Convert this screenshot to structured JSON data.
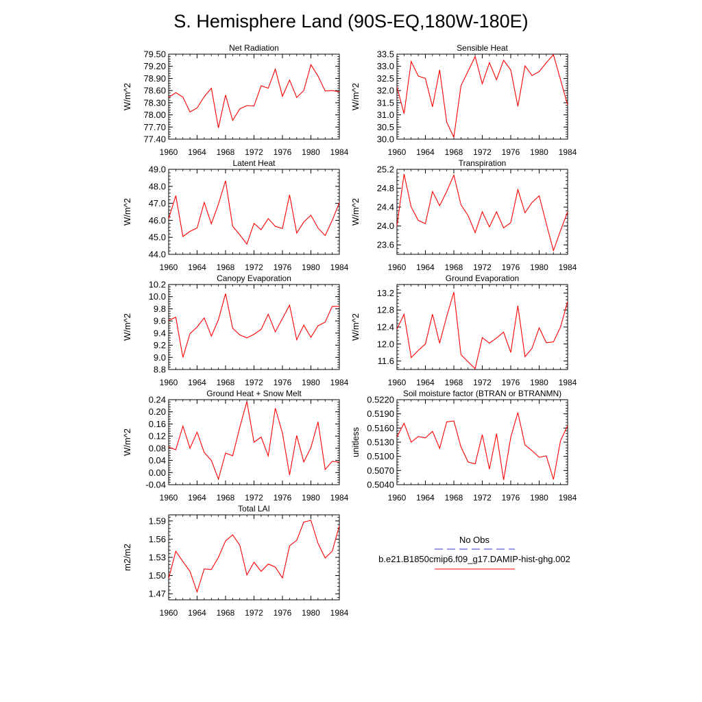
{
  "figure": {
    "title": "S. Hemisphere Land (90S-EQ,180W-180E)"
  },
  "legend": {
    "entries": [
      {
        "label": "No Obs",
        "color": "#3333cc",
        "style": "dashed"
      },
      {
        "label": "b.e21.B1850cmip6.f09_g17.DAMIP-hist-ghg.002",
        "color": "#ff0000",
        "style": "solid"
      }
    ]
  },
  "chart_data": [
    {
      "type": "line",
      "title": "Net Radiation",
      "ylabel": "W/m^2",
      "xlim": [
        1960,
        1984
      ],
      "ylim": [
        77.4,
        79.5
      ],
      "yticks": [
        "77.40",
        "77.70",
        "78.00",
        "78.30",
        "78.60",
        "78.90",
        "79.20",
        "79.50"
      ],
      "xticks": [
        "1960",
        "1964",
        "1968",
        "1972",
        "1976",
        "1980",
        "1984"
      ],
      "x": [
        1960,
        1961,
        1962,
        1963,
        1964,
        1965,
        1966,
        1967,
        1968,
        1969,
        1970,
        1971,
        1972,
        1973,
        1974,
        1975,
        1976,
        1977,
        1978,
        1979,
        1980,
        1981,
        1982,
        1983,
        1984
      ],
      "series": [
        {
          "color": "#ff0000",
          "values": [
            78.43,
            78.55,
            78.44,
            78.07,
            78.17,
            78.45,
            78.66,
            77.68,
            78.49,
            77.86,
            78.15,
            78.23,
            78.22,
            78.72,
            78.66,
            79.13,
            78.46,
            78.86,
            78.43,
            78.6,
            79.24,
            78.96,
            78.59,
            78.6,
            78.57
          ]
        }
      ]
    },
    {
      "type": "line",
      "title": "Sensible Heat",
      "ylabel": "W/m^2",
      "xlim": [
        1960,
        1984
      ],
      "ylim": [
        30.0,
        33.5
      ],
      "yticks": [
        "30.0",
        "30.5",
        "31.0",
        "31.5",
        "32.0",
        "32.5",
        "33.0",
        "33.5"
      ],
      "xticks": [
        "1960",
        "1964",
        "1968",
        "1972",
        "1976",
        "1980",
        "1984"
      ],
      "x": [
        1960,
        1961,
        1962,
        1963,
        1964,
        1965,
        1966,
        1967,
        1968,
        1969,
        1970,
        1971,
        1972,
        1973,
        1974,
        1975,
        1976,
        1977,
        1978,
        1979,
        1980,
        1981,
        1982,
        1983,
        1984
      ],
      "series": [
        {
          "color": "#ff0000",
          "values": [
            32.15,
            31.05,
            33.2,
            32.6,
            32.5,
            31.33,
            32.85,
            30.7,
            30.08,
            32.2,
            32.8,
            33.4,
            32.28,
            33.15,
            32.45,
            33.25,
            32.85,
            31.35,
            33.02,
            32.62,
            32.78,
            33.15,
            33.48,
            32.45,
            31.4
          ]
        }
      ]
    },
    {
      "type": "line",
      "title": "Latent Heat",
      "ylabel": "W/m^2",
      "xlim": [
        1960,
        1984
      ],
      "ylim": [
        44.0,
        49.0
      ],
      "yticks": [
        "44.0",
        "45.0",
        "46.0",
        "47.0",
        "48.0",
        "49.0"
      ],
      "xticks": [
        "1960",
        "1964",
        "1968",
        "1972",
        "1976",
        "1980",
        "1984"
      ],
      "x": [
        1960,
        1961,
        1962,
        1963,
        1964,
        1965,
        1966,
        1967,
        1968,
        1969,
        1970,
        1971,
        1972,
        1973,
        1974,
        1975,
        1976,
        1977,
        1978,
        1979,
        1980,
        1981,
        1982,
        1983,
        1984
      ],
      "series": [
        {
          "color": "#ff0000",
          "values": [
            46.1,
            47.45,
            45.05,
            45.35,
            45.55,
            47.05,
            45.8,
            46.95,
            48.33,
            45.65,
            45.15,
            44.6,
            45.82,
            45.45,
            46.1,
            45.65,
            45.52,
            47.5,
            45.25,
            45.9,
            46.3,
            45.55,
            45.1,
            46.0,
            47.05
          ]
        }
      ]
    },
    {
      "type": "line",
      "title": "Transpiration",
      "ylabel": "W/m^2",
      "xlim": [
        1960,
        1984
      ],
      "ylim": [
        23.4,
        25.2
      ],
      "yticks": [
        "23.6",
        "24.0",
        "24.4",
        "24.8",
        "25.2"
      ],
      "xticks": [
        "1960",
        "1964",
        "1968",
        "1972",
        "1976",
        "1980",
        "1984"
      ],
      "x": [
        1960,
        1961,
        1962,
        1963,
        1964,
        1965,
        1966,
        1967,
        1968,
        1969,
        1970,
        1971,
        1972,
        1973,
        1974,
        1975,
        1976,
        1977,
        1978,
        1979,
        1980,
        1981,
        1982,
        1983,
        1984
      ],
      "series": [
        {
          "color": "#ff0000",
          "values": [
            24.0,
            25.1,
            24.4,
            24.12,
            24.05,
            24.73,
            24.43,
            24.73,
            25.08,
            24.45,
            24.22,
            23.86,
            24.3,
            23.98,
            24.3,
            23.96,
            24.07,
            24.77,
            24.28,
            24.5,
            24.64,
            24.05,
            23.48,
            23.9,
            24.3
          ]
        }
      ]
    },
    {
      "type": "line",
      "title": "Canopy Evaporation",
      "ylabel": "W/m^2",
      "xlim": [
        1960,
        1984
      ],
      "ylim": [
        8.8,
        10.2
      ],
      "yticks": [
        "8.8",
        "9.0",
        "9.2",
        "9.4",
        "9.6",
        "9.8",
        "10.0",
        "10.2"
      ],
      "xticks": [
        "1960",
        "1964",
        "1968",
        "1972",
        "1976",
        "1980",
        "1984"
      ],
      "x": [
        1960,
        1961,
        1962,
        1963,
        1964,
        1965,
        1966,
        1967,
        1968,
        1969,
        1970,
        1971,
        1972,
        1973,
        1974,
        1975,
        1976,
        1977,
        1978,
        1979,
        1980,
        1981,
        1982,
        1983,
        1984
      ],
      "series": [
        {
          "color": "#ff0000",
          "values": [
            9.61,
            9.66,
            9.0,
            9.39,
            9.5,
            9.65,
            9.35,
            9.62,
            10.05,
            9.48,
            9.37,
            9.32,
            9.38,
            9.46,
            9.71,
            9.42,
            9.64,
            9.86,
            9.29,
            9.53,
            9.33,
            9.52,
            9.58,
            9.84,
            9.84
          ]
        }
      ]
    },
    {
      "type": "line",
      "title": "Ground Evaporation",
      "ylabel": "W/m^2",
      "xlim": [
        1960,
        1984
      ],
      "ylim": [
        11.4,
        13.4
      ],
      "yticks": [
        "11.6",
        "12.0",
        "12.4",
        "12.8",
        "13.2"
      ],
      "xticks": [
        "1960",
        "1964",
        "1968",
        "1972",
        "1976",
        "1980",
        "1984"
      ],
      "x": [
        1960,
        1961,
        1962,
        1963,
        1964,
        1965,
        1966,
        1967,
        1968,
        1969,
        1970,
        1971,
        1972,
        1973,
        1974,
        1975,
        1976,
        1977,
        1978,
        1979,
        1980,
        1981,
        1982,
        1983,
        1984
      ],
      "series": [
        {
          "color": "#ff0000",
          "values": [
            12.35,
            12.7,
            11.68,
            11.85,
            12.0,
            12.7,
            12.02,
            12.65,
            13.22,
            11.75,
            11.58,
            11.42,
            12.15,
            12.02,
            12.14,
            12.28,
            11.8,
            12.9,
            11.7,
            11.9,
            12.38,
            12.03,
            12.05,
            12.4,
            13.0
          ]
        }
      ]
    },
    {
      "type": "line",
      "title": "Ground Heat + Snow Melt",
      "ylabel": "W/m^2",
      "xlim": [
        1960,
        1984
      ],
      "ylim": [
        -0.04,
        0.24
      ],
      "yticks": [
        "-0.04",
        "0.00",
        "0.04",
        "0.08",
        "0.12",
        "0.16",
        "0.20",
        "0.24"
      ],
      "xticks": [
        "1960",
        "1964",
        "1968",
        "1972",
        "1976",
        "1980",
        "1984"
      ],
      "x": [
        1960,
        1961,
        1962,
        1963,
        1964,
        1965,
        1966,
        1967,
        1968,
        1969,
        1970,
        1971,
        1972,
        1973,
        1974,
        1975,
        1976,
        1977,
        1978,
        1979,
        1980,
        1981,
        1982,
        1983,
        1984
      ],
      "series": [
        {
          "color": "#ff0000",
          "values": [
            0.084,
            0.075,
            0.153,
            0.08,
            0.133,
            0.066,
            0.04,
            -0.022,
            0.064,
            0.055,
            0.149,
            0.234,
            0.1,
            0.117,
            0.055,
            0.212,
            0.13,
            -0.008,
            0.122,
            0.035,
            0.082,
            0.167,
            0.01,
            0.037,
            0.034
          ]
        }
      ]
    },
    {
      "type": "line",
      "title": "Soil moisture factor (BTRAN or BTRANMN)",
      "ylabel": "unitless",
      "xlim": [
        1960,
        1984
      ],
      "ylim": [
        0.504,
        0.522
      ],
      "yticks": [
        "0.5040",
        "0.5070",
        "0.5100",
        "0.5130",
        "0.5160",
        "0.5190",
        "0.5220"
      ],
      "xticks": [
        "1960",
        "1964",
        "1968",
        "1972",
        "1976",
        "1980",
        "1984"
      ],
      "x": [
        1960,
        1961,
        1962,
        1963,
        1964,
        1965,
        1966,
        1967,
        1968,
        1969,
        1970,
        1971,
        1972,
        1973,
        1974,
        1975,
        1976,
        1977,
        1978,
        1979,
        1980,
        1981,
        1982,
        1983,
        1984
      ],
      "series": [
        {
          "color": "#ff0000",
          "values": [
            0.5141,
            0.517,
            0.513,
            0.5142,
            0.5139,
            0.5153,
            0.5117,
            0.5173,
            0.5175,
            0.512,
            0.5088,
            0.5084,
            0.5146,
            0.5073,
            0.5148,
            0.505,
            0.514,
            0.5193,
            0.5124,
            0.5112,
            0.5098,
            0.5101,
            0.5051,
            0.5133,
            0.5165
          ]
        }
      ]
    },
    {
      "type": "line",
      "title": "Total LAI",
      "ylabel": "m2/m2",
      "xlim": [
        1960,
        1984
      ],
      "ylim": [
        1.46,
        1.6
      ],
      "yticks": [
        "1.47",
        "1.50",
        "1.53",
        "1.56",
        "1.59"
      ],
      "xticks": [
        "1960",
        "1964",
        "1968",
        "1972",
        "1976",
        "1980",
        "1984"
      ],
      "x": [
        1960,
        1961,
        1962,
        1963,
        1964,
        1965,
        1966,
        1967,
        1968,
        1969,
        1970,
        1971,
        1972,
        1973,
        1974,
        1975,
        1976,
        1977,
        1978,
        1979,
        1980,
        1981,
        1982,
        1983,
        1984
      ],
      "series": [
        {
          "color": "#ff0000",
          "values": [
            1.495,
            1.54,
            1.523,
            1.507,
            1.473,
            1.511,
            1.51,
            1.53,
            1.557,
            1.567,
            1.55,
            1.501,
            1.522,
            1.507,
            1.519,
            1.514,
            1.496,
            1.549,
            1.558,
            1.588,
            1.591,
            1.553,
            1.529,
            1.54,
            1.582
          ]
        }
      ]
    }
  ]
}
